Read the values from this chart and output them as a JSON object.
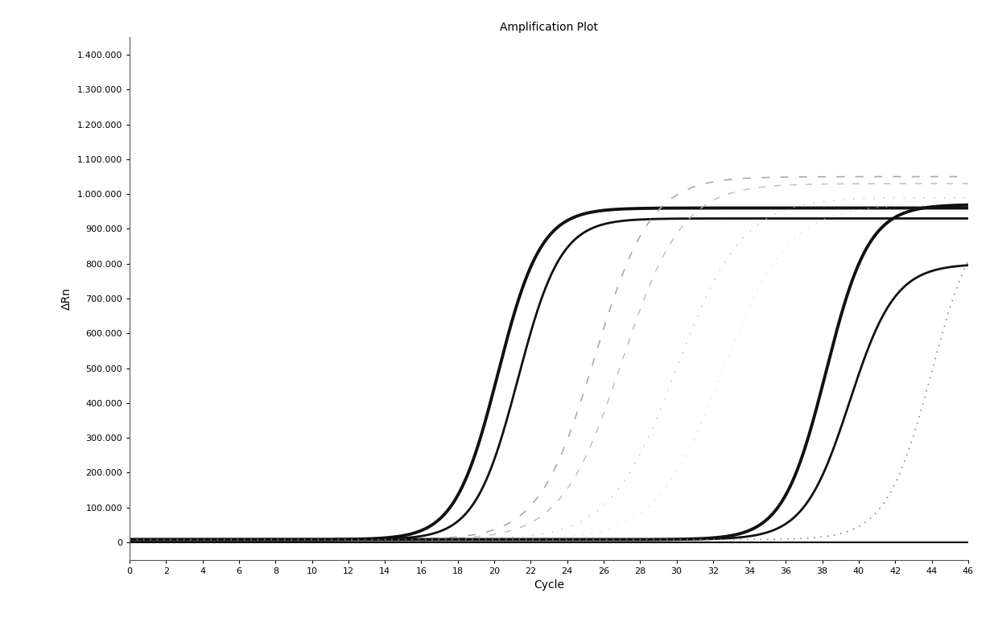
{
  "title": "Amplification Plot",
  "xlabel": "Cycle",
  "ylabel": "ΔRn",
  "xlim": [
    0,
    46
  ],
  "ylim": [
    -50000,
    1450000
  ],
  "xticks": [
    0,
    2,
    4,
    6,
    8,
    10,
    12,
    14,
    16,
    18,
    20,
    22,
    24,
    26,
    28,
    30,
    32,
    34,
    36,
    38,
    40,
    42,
    44,
    46
  ],
  "yticks": [
    0,
    100000,
    200000,
    300000,
    400000,
    500000,
    600000,
    700000,
    800000,
    900000,
    1000000,
    1100000,
    1200000,
    1300000,
    1400000
  ],
  "background_color": "#ffffff",
  "curves": [
    {
      "midpoint": 20.2,
      "plateau": 960000,
      "slope": 0.85,
      "style": "solid",
      "color": "#111111",
      "lw": 2.8
    },
    {
      "midpoint": 21.3,
      "plateau": 930000,
      "slope": 0.85,
      "style": "solid",
      "color": "#111111",
      "lw": 2.0
    },
    {
      "midpoint": 25.5,
      "plateau": 1050000,
      "slope": 0.65,
      "style": "sparse_dash",
      "color": "#aaaaaa",
      "lw": 1.2
    },
    {
      "midpoint": 27.0,
      "plateau": 1030000,
      "slope": 0.6,
      "style": "sparse_dash",
      "color": "#bbbbbb",
      "lw": 1.0
    },
    {
      "midpoint": 30.0,
      "plateau": 990000,
      "slope": 0.55,
      "style": "sparse_dot",
      "color": "#bbbbbb",
      "lw": 1.0
    },
    {
      "midpoint": 32.5,
      "plateau": 970000,
      "slope": 0.55,
      "style": "sparse_dot",
      "color": "#cccccc",
      "lw": 0.9
    },
    {
      "midpoint": 38.2,
      "plateau": 970000,
      "slope": 0.85,
      "style": "solid",
      "color": "#111111",
      "lw": 2.8
    },
    {
      "midpoint": 39.5,
      "plateau": 800000,
      "slope": 0.8,
      "style": "solid",
      "color": "#111111",
      "lw": 2.0
    },
    {
      "midpoint": 44.0,
      "plateau": 970000,
      "slope": 0.8,
      "style": "fine_dot",
      "color": "#888888",
      "lw": 1.2
    }
  ]
}
